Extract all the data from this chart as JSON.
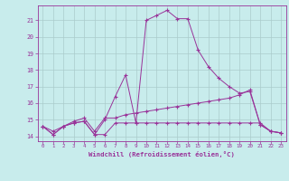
{
  "xlabel": "Windchill (Refroidissement éolien,°C)",
  "background_color": "#c8ecec",
  "line_color": "#993399",
  "grid_color": "#aacccc",
  "hours": [
    0,
    1,
    2,
    3,
    4,
    5,
    6,
    7,
    8,
    9,
    10,
    11,
    12,
    13,
    14,
    15,
    16,
    17,
    18,
    19,
    20,
    21,
    22,
    23
  ],
  "line1": [
    14.6,
    14.1,
    14.6,
    14.8,
    14.9,
    14.1,
    15.0,
    16.4,
    17.7,
    14.8,
    21.0,
    21.3,
    21.6,
    21.1,
    21.1,
    19.2,
    18.2,
    17.5,
    17.0,
    16.6,
    16.7,
    14.7,
    14.3,
    14.2
  ],
  "line2": [
    14.6,
    14.1,
    14.6,
    14.8,
    14.9,
    14.1,
    14.1,
    14.8,
    14.8,
    14.8,
    14.8,
    14.8,
    14.8,
    14.8,
    14.8,
    14.8,
    14.8,
    14.8,
    14.8,
    14.8,
    14.8,
    14.8,
    14.3,
    14.2
  ],
  "line3": [
    14.6,
    14.3,
    14.6,
    14.9,
    15.1,
    14.3,
    15.1,
    15.1,
    15.3,
    15.4,
    15.5,
    15.6,
    15.7,
    15.8,
    15.9,
    16.0,
    16.1,
    16.2,
    16.3,
    16.5,
    16.8,
    14.7,
    14.3,
    14.2
  ],
  "ylim": [
    13.7,
    21.9
  ],
  "yticks": [
    14,
    15,
    16,
    17,
    18,
    19,
    20,
    21
  ],
  "xlim": [
    -0.5,
    23.5
  ],
  "xticks": [
    0,
    1,
    2,
    3,
    4,
    5,
    6,
    7,
    8,
    9,
    10,
    11,
    12,
    13,
    14,
    15,
    16,
    17,
    18,
    19,
    20,
    21,
    22,
    23
  ],
  "xtick_labels": [
    "0",
    "1",
    "2",
    "3",
    "4",
    "5",
    "6",
    "7",
    "8",
    "9",
    "10",
    "11",
    "12",
    "13",
    "14",
    "15",
    "16",
    "17",
    "18",
    "19",
    "20",
    "21",
    "22",
    "23"
  ]
}
